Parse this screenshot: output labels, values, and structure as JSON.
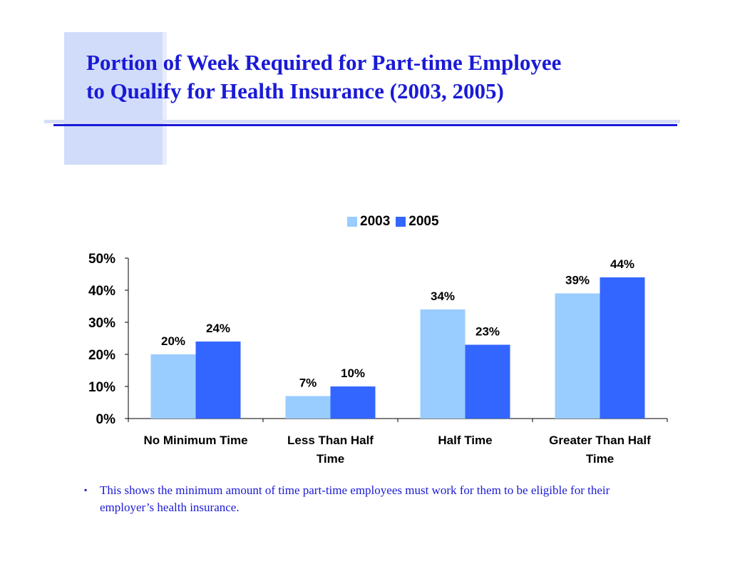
{
  "title_lines": [
    "Portion of Week Required for Part-time Employee",
    "to Qualify for Health Insurance (2003, 2005)"
  ],
  "note": "This shows the minimum amount of time part-time employees must work for them to be eligible for their employer’s health insurance.",
  "colors": {
    "accent": "#1a1ad6",
    "series_2003": "#99ccff",
    "series_2005": "#3366ff"
  },
  "chart_data": {
    "type": "bar",
    "categories": [
      [
        "No Minimum Time"
      ],
      [
        "Less Than Half",
        "Time"
      ],
      [
        "Half Time"
      ],
      [
        "Greater Than Half",
        "Time"
      ]
    ],
    "series": [
      {
        "name": "2003",
        "values": [
          20,
          7,
          34,
          39
        ],
        "labels": [
          "20%",
          "7%",
          "34%",
          "39%"
        ]
      },
      {
        "name": "2005",
        "values": [
          24,
          10,
          23,
          44
        ],
        "labels": [
          "24%",
          "10%",
          "23%",
          "44%"
        ]
      }
    ],
    "yticks": [
      "0%",
      "10%",
      "20%",
      "30%",
      "40%",
      "50%"
    ],
    "ylim": [
      0,
      50
    ],
    "legend": "top",
    "grid": false
  }
}
